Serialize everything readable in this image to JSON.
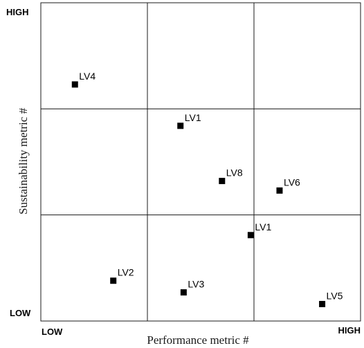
{
  "chart_data": {
    "type": "scatter",
    "title": "",
    "xlabel": "Performance metric #",
    "ylabel": "Sustainability metric #",
    "xlim": [
      0,
      3
    ],
    "ylim": [
      0,
      3
    ],
    "grid": true,
    "x_tick_labels": {
      "low": "LOW",
      "high": "HIGH"
    },
    "y_tick_labels": {
      "low": "LOW",
      "high": "HIGH"
    },
    "marker_color": "#000000",
    "points": [
      {
        "label": "LV4",
        "x": 0.32,
        "y": 2.23
      },
      {
        "label": "LV1",
        "x": 1.31,
        "y": 1.84
      },
      {
        "label": "LV8",
        "x": 1.7,
        "y": 1.32
      },
      {
        "label": "LV6",
        "x": 2.24,
        "y": 1.23
      },
      {
        "label": "LV1",
        "x": 1.97,
        "y": 0.81
      },
      {
        "label": "LV2",
        "x": 0.68,
        "y": 0.38
      },
      {
        "label": "LV3",
        "x": 1.34,
        "y": 0.27
      },
      {
        "label": "LV5",
        "x": 2.64,
        "y": 0.16
      }
    ]
  }
}
